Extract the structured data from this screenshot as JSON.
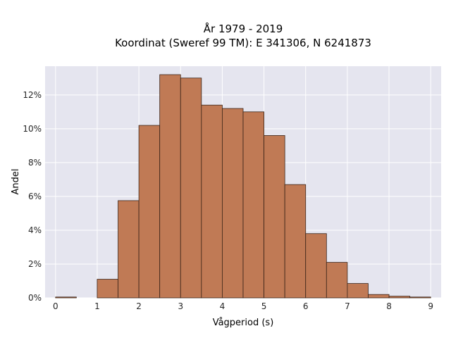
{
  "chart_data": {
    "type": "bar",
    "title": "År 1979 - 2019",
    "subtitle": "Koordinat (Sweref 99 TM): E 341306, N 6241873",
    "xlabel": "Vågperiod (s)",
    "ylabel": "Andel",
    "xlim": [
      -0.25,
      9.25
    ],
    "ylim": [
      0,
      13.7
    ],
    "x_ticks": [
      "0",
      "1",
      "2",
      "3",
      "4",
      "5",
      "6",
      "7",
      "8",
      "9"
    ],
    "y_ticks": [
      "0%",
      "2%",
      "4%",
      "6%",
      "8%",
      "10%",
      "12%"
    ],
    "grid": true,
    "bin_width": 0.5,
    "bins": [
      {
        "x0": 0.0,
        "x1": 0.5,
        "value": 0.05
      },
      {
        "x0": 0.5,
        "x1": 1.0,
        "value": 0.0
      },
      {
        "x0": 1.0,
        "x1": 1.5,
        "value": 1.1
      },
      {
        "x0": 1.5,
        "x1": 2.0,
        "value": 5.75
      },
      {
        "x0": 2.0,
        "x1": 2.5,
        "value": 10.2
      },
      {
        "x0": 2.5,
        "x1": 3.0,
        "value": 13.2
      },
      {
        "x0": 3.0,
        "x1": 3.5,
        "value": 13.0
      },
      {
        "x0": 3.5,
        "x1": 4.0,
        "value": 11.4
      },
      {
        "x0": 4.0,
        "x1": 4.5,
        "value": 11.2
      },
      {
        "x0": 4.5,
        "x1": 5.0,
        "value": 11.0
      },
      {
        "x0": 5.0,
        "x1": 5.5,
        "value": 9.6
      },
      {
        "x0": 5.5,
        "x1": 6.0,
        "value": 6.7
      },
      {
        "x0": 6.0,
        "x1": 6.5,
        "value": 3.8
      },
      {
        "x0": 6.5,
        "x1": 7.0,
        "value": 2.1
      },
      {
        "x0": 7.0,
        "x1": 7.5,
        "value": 0.85
      },
      {
        "x0": 7.5,
        "x1": 8.0,
        "value": 0.2
      },
      {
        "x0": 8.0,
        "x1": 8.5,
        "value": 0.1
      },
      {
        "x0": 8.5,
        "x1": 9.0,
        "value": 0.05
      }
    ],
    "colors": {
      "bar_fill": "#c07a55",
      "bar_stroke": "#3a2418",
      "plot_bg": "#e5e5ef",
      "grid": "#ffffff",
      "text": "#262626"
    }
  }
}
